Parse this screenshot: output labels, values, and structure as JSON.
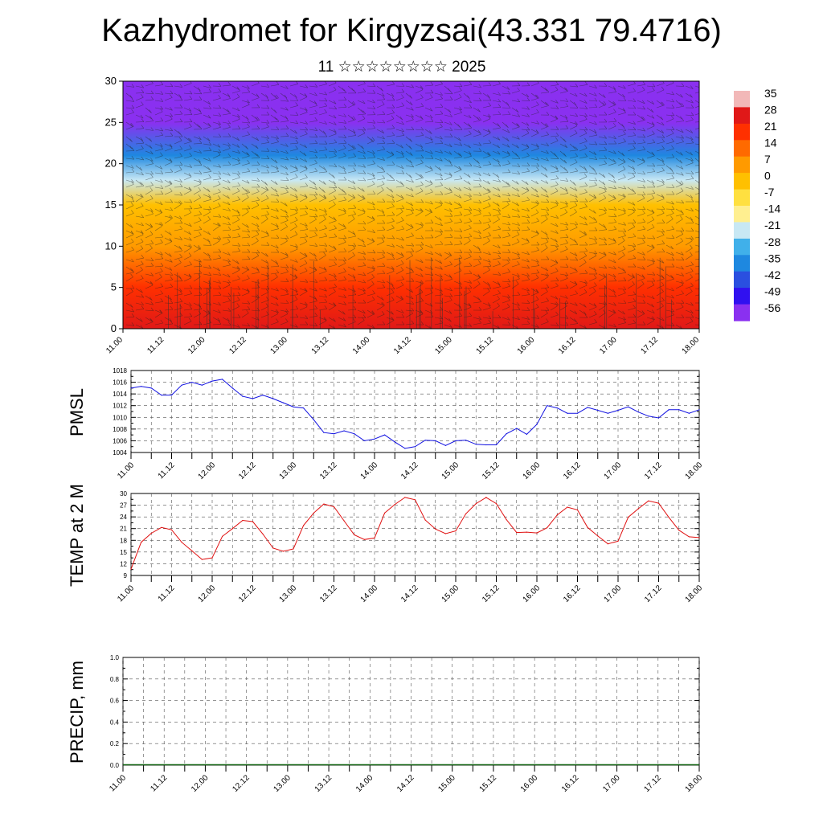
{
  "title": "Kazhydromet for Kirgyzsai(43.331 79.4716)",
  "subtitle": "11 ☆☆☆☆☆☆☆☆ 2025",
  "chart_data": [
    {
      "type": "heatmap",
      "id": "vertical-cross-section",
      "x_tick_labels": [
        "11.00",
        "11.12",
        "12.00",
        "12.12",
        "13.00",
        "13.12",
        "14.00",
        "14.12",
        "15.00",
        "15.12",
        "16.00",
        "16.12",
        "17.00",
        "17.12",
        "18.00"
      ],
      "y_tick_labels": [
        "0",
        "5",
        "10",
        "15",
        "20",
        "25",
        "30"
      ],
      "ylim": [
        0,
        30
      ],
      "colorbar_labels": [
        "35",
        "28",
        "21",
        "14",
        "7",
        "0",
        "-7",
        "-14",
        "-21",
        "-28",
        "-35",
        "-42",
        "-49",
        "-56"
      ],
      "colorbar_colors": [
        "#f2b8b8",
        "#e01818",
        "#ff3000",
        "#ff6a00",
        "#ff9a00",
        "#ffc000",
        "#ffe040",
        "#ffef90",
        "#c8e8f4",
        "#40b0ea",
        "#1e88e0",
        "#2a4fe0",
        "#3010f0",
        "#8a30f0"
      ],
      "profile_by_level": [
        {
          "level": 0,
          "value": 30
        },
        {
          "level": 5,
          "value": 22
        },
        {
          "level": 10,
          "value": 12
        },
        {
          "level": 15,
          "value": 2
        },
        {
          "level": 18,
          "value": -16
        },
        {
          "level": 21,
          "value": -30
        },
        {
          "level": 25,
          "value": -50
        },
        {
          "level": 30,
          "value": -58
        }
      ]
    },
    {
      "type": "line",
      "id": "pmsl",
      "ylabel": "PMSL",
      "x_tick_labels": [
        "11.00",
        "11.12",
        "12.00",
        "12.12",
        "13.00",
        "13.12",
        "14.00",
        "14.12",
        "15.00",
        "15.12",
        "16.00",
        "16.12",
        "17.00",
        "17.12",
        "18.00"
      ],
      "y_tick_labels": [
        "1004",
        "1006",
        "1008",
        "1010",
        "1012",
        "1014",
        "1016",
        "1018"
      ],
      "ylim": [
        1004,
        1018
      ],
      "color": "#1010e0",
      "x_hours": [
        0,
        3,
        6,
        9,
        12,
        15,
        18,
        21,
        24,
        27,
        30,
        33,
        36,
        39,
        42,
        45,
        48,
        51,
        54,
        57,
        60,
        63,
        66,
        69,
        72,
        75,
        78,
        81,
        84,
        87,
        90,
        93,
        96,
        99,
        102,
        105,
        108,
        111,
        114,
        117,
        120,
        123,
        126,
        129,
        132,
        135,
        138,
        141,
        144,
        147,
        150,
        153,
        156,
        159,
        162,
        165,
        168
      ],
      "values": [
        1015.0,
        1015.3,
        1015.0,
        1013.8,
        1013.8,
        1015.5,
        1016.0,
        1015.5,
        1016.2,
        1016.5,
        1015.0,
        1013.6,
        1013.2,
        1013.8,
        1013.2,
        1012.5,
        1011.8,
        1011.6,
        1009.6,
        1007.4,
        1007.2,
        1007.7,
        1007.2,
        1006.0,
        1006.3,
        1007.0,
        1005.8,
        1004.7,
        1005.0,
        1006.1,
        1006.0,
        1005.2,
        1006.0,
        1006.1,
        1005.4,
        1005.3,
        1005.3,
        1007.2,
        1008.1,
        1007.1,
        1008.8,
        1012.0,
        1011.6,
        1010.7,
        1010.7,
        1011.7,
        1011.2,
        1010.7,
        1011.2,
        1011.8,
        1010.9,
        1010.2,
        1009.9,
        1011.3,
        1011.3,
        1010.7,
        1011.3
      ]
    },
    {
      "type": "line",
      "id": "temp2m",
      "ylabel": "TEMP at 2 M",
      "x_tick_labels": [
        "11.00",
        "11.12",
        "12.00",
        "12.12",
        "13.00",
        "13.12",
        "14.00",
        "14.12",
        "15.00",
        "15.12",
        "16.00",
        "16.12",
        "17.00",
        "17.12",
        "18.00"
      ],
      "y_tick_labels": [
        "9",
        "12",
        "15",
        "18",
        "21",
        "24",
        "27",
        "30"
      ],
      "ylim": [
        9,
        30
      ],
      "color": "#e01010",
      "x_hours": [
        0,
        3,
        6,
        9,
        12,
        15,
        18,
        21,
        24,
        27,
        30,
        33,
        36,
        39,
        42,
        45,
        48,
        51,
        54,
        57,
        60,
        63,
        66,
        69,
        72,
        75,
        78,
        81,
        84,
        87,
        90,
        93,
        96,
        99,
        102,
        105,
        108,
        111,
        114,
        117,
        120,
        123,
        126,
        129,
        132,
        135,
        138,
        141,
        144,
        147,
        150,
        153,
        156,
        159,
        162,
        165,
        168
      ],
      "values": [
        10.6,
        17.5,
        19.8,
        21.3,
        20.7,
        17.5,
        15.3,
        13.1,
        13.5,
        19.0,
        21.0,
        23.1,
        22.8,
        19.6,
        16.0,
        15.2,
        15.8,
        21.8,
        25.0,
        27.3,
        26.6,
        23.0,
        19.4,
        18.2,
        18.6,
        25.0,
        27.2,
        29.0,
        28.4,
        23.2,
        20.9,
        19.7,
        20.4,
        24.8,
        27.4,
        29.0,
        27.4,
        23.3,
        20.0,
        20.1,
        19.9,
        21.2,
        24.5,
        26.5,
        25.8,
        21.3,
        19.1,
        17.1,
        17.8,
        23.9,
        26.1,
        28.1,
        27.5,
        23.9,
        20.6,
        18.9,
        18.7
      ]
    },
    {
      "type": "bar",
      "id": "precip",
      "ylabel": "PRECIP, mm",
      "x_tick_labels": [
        "11.00",
        "11.12",
        "12.00",
        "12.12",
        "13.00",
        "13.12",
        "14.00",
        "14.12",
        "15.00",
        "15.12",
        "16.00",
        "16.12",
        "17.00",
        "17.12",
        "18.00"
      ],
      "y_tick_labels": [
        "0.0",
        "0.2",
        "0.4",
        "0.6",
        "0.8",
        "1.0"
      ],
      "ylim": [
        0,
        1
      ],
      "values": [
        0,
        0,
        0,
        0,
        0,
        0,
        0,
        0,
        0,
        0,
        0,
        0,
        0,
        0
      ]
    }
  ]
}
